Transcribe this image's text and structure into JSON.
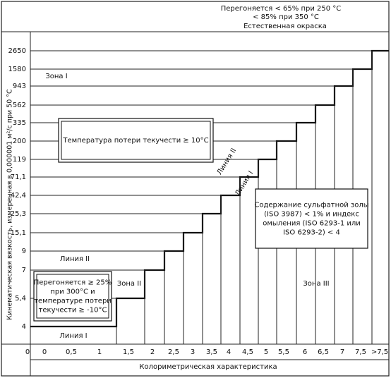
{
  "header": {
    "lines": [
      "Перегоняется < 65% при 250 °C",
      "< 85% при 350 °C",
      "Естественная окраска"
    ]
  },
  "y_axis": {
    "title": "Кинематическая вязкость, измеренная в 0,000001 м²/с при 50 °C",
    "labels": [
      "4",
      "5,4",
      "7",
      "9",
      "15,1",
      "25,3",
      "42,4",
      "71,1",
      "119",
      "200",
      "335",
      "562",
      "943",
      "1580",
      "2650"
    ]
  },
  "x_axis": {
    "title": "Колориметрическая характеристика",
    "labels": [
      "0",
      "0",
      "0,5",
      "1",
      "1,5",
      "2",
      "2,5",
      "3",
      "3,5",
      "4",
      "4,5",
      "5",
      "5,5",
      "6",
      "6,5",
      "7",
      "7,5",
      ">7,5"
    ]
  },
  "zones": [
    "Зона I",
    "Зона II",
    "Зона III"
  ],
  "lines": [
    "Линия I",
    "Линия II",
    "Линия I",
    "Линия II"
  ],
  "boxes": [
    [
      "Температура потери текучести ≥ 10°C"
    ],
    [
      "Перегоняется ≥ 25%",
      "при 300°C и",
      "температуре потери",
      "текучести ≥ -10°C"
    ],
    [
      "Содержание  сульфатной золы",
      "(ISO 3987) < 1% и индекс",
      "омыления (ISO 6293-1 или",
      "ISO 6293-2) < 4"
    ]
  ]
}
